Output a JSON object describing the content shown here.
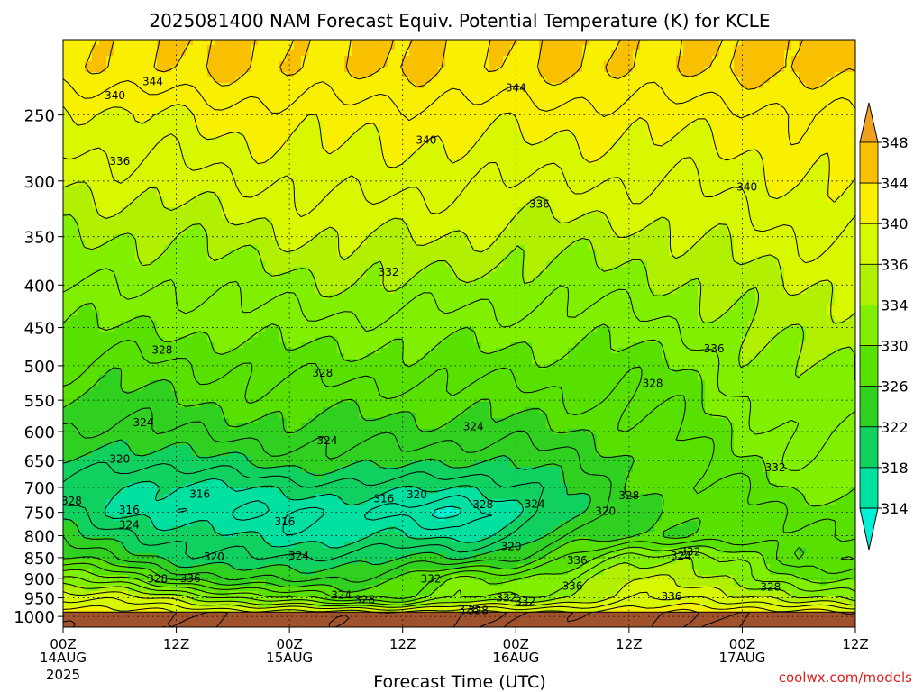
{
  "chart_data": {
    "type": "heatmap",
    "title": "2025081400 NAM Forecast Equiv. Potential Temperature (K) for KCLE",
    "xlabel": "Forecast Time (UTC)",
    "ylabel": "",
    "credit": "coolwx.com/models",
    "y_scale": "log",
    "y_reversed": true,
    "ylim": [
      1030,
      203
    ],
    "xlim": [
      0,
      84
    ],
    "x_unit": "hours since 2025-08-14 00Z",
    "grid": true,
    "y_ticks": [
      250,
      300,
      350,
      400,
      450,
      500,
      550,
      600,
      650,
      700,
      750,
      800,
      850,
      900,
      950,
      1000
    ],
    "x_ticks": [
      {
        "x": 0,
        "label": "00Z",
        "sub": "14AUG",
        "sub2": "2025"
      },
      {
        "x": 12,
        "label": "12Z",
        "sub": "",
        "sub2": ""
      },
      {
        "x": 24,
        "label": "00Z",
        "sub": "15AUG",
        "sub2": ""
      },
      {
        "x": 36,
        "label": "12Z",
        "sub": "",
        "sub2": ""
      },
      {
        "x": 48,
        "label": "00Z",
        "sub": "16AUG",
        "sub2": ""
      },
      {
        "x": 60,
        "label": "12Z",
        "sub": "",
        "sub2": ""
      },
      {
        "x": 72,
        "label": "00Z",
        "sub": "17AUG",
        "sub2": ""
      },
      {
        "x": 84,
        "label": "12Z",
        "sub": "",
        "sub2": ""
      }
    ],
    "colorbar": {
      "levels": [
        314,
        318,
        322,
        326,
        330,
        334,
        336,
        340,
        344,
        348
      ],
      "label_values": [
        348,
        344,
        340,
        336,
        334,
        330,
        326,
        322,
        318,
        314
      ],
      "colors": [
        "#00f0d8",
        "#00e0a0",
        "#10d060",
        "#30d020",
        "#58e000",
        "#80f000",
        "#b0f000",
        "#d8f800",
        "#f8f000",
        "#f8c000",
        "#f0a020"
      ]
    },
    "surface_pressure": 988,
    "profile_pressure": [
      220,
      250,
      300,
      350,
      400,
      450,
      500,
      550,
      600,
      650,
      700,
      750,
      800,
      850,
      900,
      950,
      990
    ],
    "profile_times": [
      0,
      6,
      12,
      18,
      24,
      30,
      36,
      42,
      48,
      54,
      60,
      66,
      72,
      78,
      84
    ],
    "theta_e": [
      [
        343,
        344,
        344,
        344,
        344,
        344,
        344,
        344,
        344,
        344,
        344,
        344,
        344,
        345,
        345
      ],
      [
        339,
        340,
        340,
        341,
        341,
        341,
        341,
        341,
        341,
        341,
        341,
        341,
        341,
        342,
        342
      ],
      [
        336,
        337,
        337,
        338,
        338,
        339,
        339,
        338,
        338,
        338,
        338,
        338,
        339,
        340,
        340
      ],
      [
        334,
        334,
        334,
        335,
        336,
        336,
        336,
        336,
        335,
        335,
        335,
        336,
        337,
        338,
        338
      ],
      [
        332,
        332,
        332,
        333,
        333,
        334,
        334,
        333,
        333,
        333,
        333,
        334,
        335,
        336,
        336
      ],
      [
        330,
        330,
        330,
        331,
        331,
        331,
        331,
        331,
        331,
        331,
        331,
        332,
        334,
        335,
        335
      ],
      [
        328,
        327,
        328,
        328,
        329,
        329,
        329,
        329,
        329,
        329,
        329,
        330,
        333,
        334,
        334
      ],
      [
        326,
        325,
        326,
        327,
        327,
        327,
        327,
        327,
        327,
        328,
        328,
        329,
        332,
        333,
        333
      ],
      [
        324,
        323,
        324,
        325,
        325,
        325,
        325,
        325,
        325,
        326,
        327,
        328,
        331,
        332,
        332
      ],
      [
        322,
        320,
        321,
        322,
        323,
        323,
        323,
        322,
        322,
        324,
        326,
        327,
        330,
        332,
        331
      ],
      [
        320,
        318,
        317,
        318,
        319,
        319,
        319,
        318,
        319,
        322,
        326,
        327,
        328,
        331,
        330
      ],
      [
        321,
        318,
        316,
        316,
        316,
        316,
        315,
        314,
        317,
        322,
        325,
        326,
        327,
        329,
        329
      ],
      [
        323,
        321,
        319,
        318,
        317,
        317,
        318,
        317,
        320,
        324,
        326,
        326,
        326,
        328,
        328
      ],
      [
        326,
        324,
        321,
        320,
        320,
        321,
        322,
        322,
        324,
        328,
        333,
        334,
        331,
        326,
        327
      ],
      [
        332,
        330,
        326,
        324,
        323,
        324,
        326,
        330,
        330,
        332,
        336,
        336,
        333,
        329,
        330
      ],
      [
        338,
        337,
        335,
        332,
        330,
        328,
        328,
        332,
        332,
        334,
        337,
        338,
        337,
        334,
        333
      ],
      [
        342,
        341,
        340,
        340,
        339,
        339,
        339,
        340,
        340,
        341,
        341,
        342,
        342,
        341,
        340
      ]
    ],
    "contour_labels": [
      {
        "x": 9.5,
        "p": 228,
        "text": "344"
      },
      {
        "x": 48,
        "p": 232,
        "text": "344"
      },
      {
        "x": 5.5,
        "p": 237,
        "text": "340"
      },
      {
        "x": 38.5,
        "p": 268,
        "text": "340"
      },
      {
        "x": 72.5,
        "p": 305,
        "text": "340"
      },
      {
        "x": 6.0,
        "p": 284,
        "text": "336"
      },
      {
        "x": 50.5,
        "p": 320,
        "text": "336"
      },
      {
        "x": 69,
        "p": 477,
        "text": "336"
      },
      {
        "x": 34.5,
        "p": 386,
        "text": "332"
      },
      {
        "x": 75.5,
        "p": 663,
        "text": "332"
      },
      {
        "x": 66.5,
        "p": 837,
        "text": "332"
      },
      {
        "x": 39,
        "p": 902,
        "text": "332"
      },
      {
        "x": 10.5,
        "p": 479,
        "text": "328"
      },
      {
        "x": 27.5,
        "p": 510,
        "text": "328"
      },
      {
        "x": 62.5,
        "p": 525,
        "text": "328"
      },
      {
        "x": 0.9,
        "p": 727,
        "text": "328"
      },
      {
        "x": 44.5,
        "p": 734,
        "text": "328"
      },
      {
        "x": 60.0,
        "p": 716,
        "text": "328"
      },
      {
        "x": 10.0,
        "p": 902,
        "text": "328"
      },
      {
        "x": 32.0,
        "p": 955,
        "text": "328"
      },
      {
        "x": 44.0,
        "p": 983,
        "text": "328"
      },
      {
        "x": 75.0,
        "p": 922,
        "text": "328"
      },
      {
        "x": 8.5,
        "p": 585,
        "text": "324"
      },
      {
        "x": 28.0,
        "p": 615,
        "text": "324"
      },
      {
        "x": 43.5,
        "p": 592,
        "text": "324"
      },
      {
        "x": 7.0,
        "p": 776,
        "text": "324"
      },
      {
        "x": 25.0,
        "p": 846,
        "text": "324"
      },
      {
        "x": 50.0,
        "p": 733,
        "text": "324"
      },
      {
        "x": 65.5,
        "p": 846,
        "text": "324"
      },
      {
        "x": 29.5,
        "p": 943,
        "text": "324"
      },
      {
        "x": 6.0,
        "p": 647,
        "text": "320"
      },
      {
        "x": 37.5,
        "p": 714,
        "text": "320"
      },
      {
        "x": 57.5,
        "p": 748,
        "text": "320"
      },
      {
        "x": 16.0,
        "p": 848,
        "text": "320"
      },
      {
        "x": 47.5,
        "p": 824,
        "text": "320"
      },
      {
        "x": 14.5,
        "p": 713,
        "text": "316"
      },
      {
        "x": 34.0,
        "p": 722,
        "text": "316"
      },
      {
        "x": 7.0,
        "p": 745,
        "text": "316"
      },
      {
        "x": 23.5,
        "p": 770,
        "text": "316"
      },
      {
        "x": 13.5,
        "p": 900,
        "text": "336"
      },
      {
        "x": 54.5,
        "p": 857,
        "text": "336"
      },
      {
        "x": 54.0,
        "p": 920,
        "text": "336"
      },
      {
        "x": 64.5,
        "p": 946,
        "text": "336"
      },
      {
        "x": 47.0,
        "p": 950,
        "text": "332"
      },
      {
        "x": 49.0,
        "p": 960,
        "text": "332"
      },
      {
        "x": 43.0,
        "p": 981,
        "text": "328"
      }
    ]
  }
}
